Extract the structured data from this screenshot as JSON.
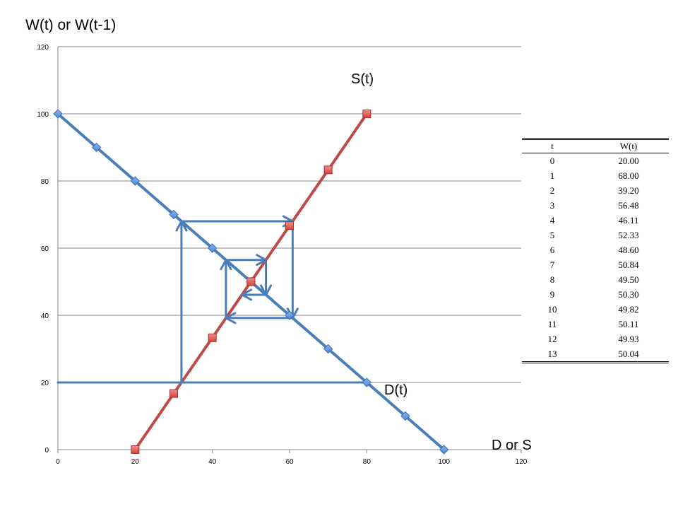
{
  "ylabel": "W(t) or W(t-1)",
  "xlabel": "D or S",
  "series_labels": {
    "supply": "S(t)",
    "demand": "D(t)"
  },
  "colors": {
    "demand": "#4a7ebb",
    "supply": "#be4b48",
    "cobweb": "#4a7ebb",
    "grid": "#868686"
  },
  "chart_data": {
    "type": "line",
    "xlim": [
      0,
      120
    ],
    "ylim": [
      0,
      120
    ],
    "xticks": [
      "0",
      "20",
      "40",
      "60",
      "80",
      "100",
      "120"
    ],
    "yticks": [
      "0",
      "20",
      "40",
      "60",
      "80",
      "100",
      "120"
    ],
    "grid": "horizontal",
    "series": [
      {
        "name": "D(t)",
        "marker": "diamond",
        "x": [
          0,
          10,
          20,
          30,
          40,
          50,
          60,
          70,
          80,
          90,
          100
        ],
        "y": [
          100,
          90,
          80,
          70,
          60,
          50,
          40,
          30,
          20,
          10,
          0
        ]
      },
      {
        "name": "S(t)",
        "marker": "square",
        "x": [
          20,
          30,
          40,
          50,
          60,
          70,
          80
        ],
        "y": [
          0,
          16.7,
          33.3,
          50,
          66.7,
          83.3,
          100
        ]
      }
    ],
    "cobweb": {
      "arrows": [
        [
          [
            0,
            20
          ],
          [
            80,
            20
          ]
        ],
        [
          [
            32,
            20
          ],
          [
            32,
            68
          ]
        ],
        [
          [
            32,
            68
          ],
          [
            60.8,
            68
          ]
        ],
        [
          [
            60.8,
            68
          ],
          [
            60.8,
            39.2
          ]
        ],
        [
          [
            60.8,
            39.2
          ],
          [
            43.52,
            39.2
          ]
        ],
        [
          [
            43.52,
            39.2
          ],
          [
            43.52,
            56.48
          ]
        ],
        [
          [
            43.52,
            56.48
          ],
          [
            53.89,
            56.48
          ]
        ],
        [
          [
            53.89,
            56.48
          ],
          [
            53.89,
            46.11
          ]
        ],
        [
          [
            53.89,
            46.11
          ],
          [
            47.67,
            46.11
          ]
        ]
      ]
    },
    "table": {
      "headers": [
        "t",
        "W(t)"
      ],
      "rows": [
        [
          "0",
          "20.00"
        ],
        [
          "1",
          "68.00"
        ],
        [
          "2",
          "39.20"
        ],
        [
          "3",
          "56.48"
        ],
        [
          "4",
          "46.11"
        ],
        [
          "5",
          "52.33"
        ],
        [
          "6",
          "48.60"
        ],
        [
          "7",
          "50.84"
        ],
        [
          "8",
          "49.50"
        ],
        [
          "9",
          "50.30"
        ],
        [
          "10",
          "49.82"
        ],
        [
          "11",
          "50.11"
        ],
        [
          "12",
          "49.93"
        ],
        [
          "13",
          "50.04"
        ]
      ]
    }
  }
}
